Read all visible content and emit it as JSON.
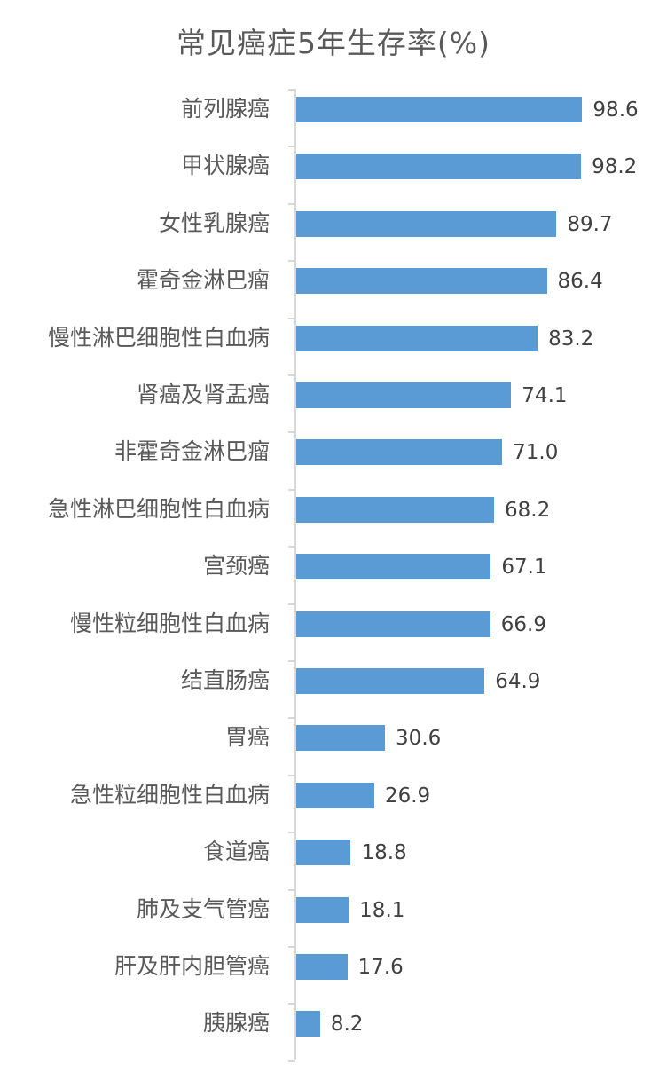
{
  "chart_data": {
    "type": "bar",
    "orientation": "horizontal",
    "title": "常见癌症5年生存率(%)",
    "xlabel": "",
    "ylabel": "",
    "grid": false,
    "legend": null,
    "bar_color": "#5b9bd5",
    "categories": [
      "前列腺癌",
      "甲状腺癌",
      "女性乳腺癌",
      "霍奇金淋巴瘤",
      "慢性淋巴细胞性白血病",
      "肾癌及肾盂癌",
      "非霍奇金淋巴瘤",
      "急性淋巴细胞性白血病",
      "宫颈癌",
      "慢性粒细胞性白血病",
      "结直肠癌",
      "胃癌",
      "急性粒细胞性白血病",
      "食道癌",
      "肺及支气管癌",
      "肝及肝内胆管癌",
      "胰腺癌"
    ],
    "values": [
      98.6,
      98.2,
      89.7,
      86.4,
      83.2,
      74.1,
      71.0,
      68.2,
      67.1,
      66.9,
      64.9,
      30.6,
      26.9,
      18.8,
      18.1,
      17.6,
      8.2
    ],
    "value_labels": [
      "98.6",
      "98.2",
      "89.7",
      "86.4",
      "83.2",
      "74.1",
      "71.0",
      "68.2",
      "67.1",
      "66.9",
      "64.9",
      "30.6",
      "26.9",
      "18.8",
      "18.1",
      "17.6",
      "8.2"
    ],
    "xlim": [
      0,
      100
    ]
  }
}
